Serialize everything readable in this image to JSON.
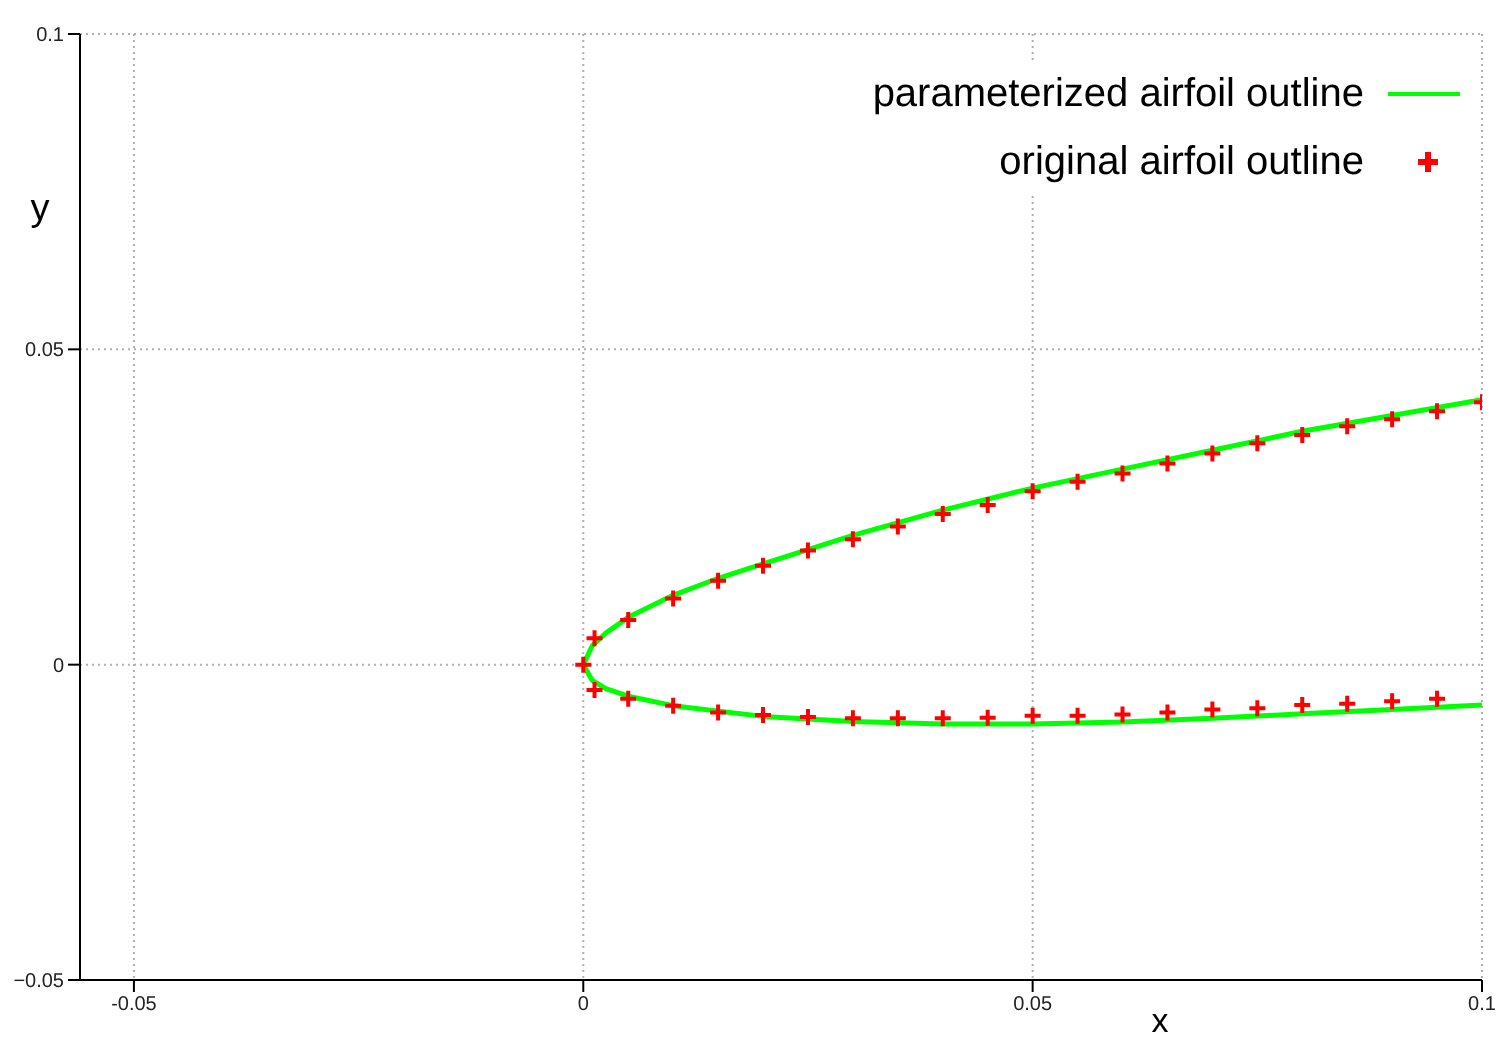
{
  "chart_data": {
    "type": "scatter",
    "xlabel": "x",
    "ylabel": "y",
    "xlim": [
      -0.056,
      0.1
    ],
    "ylim": [
      -0.05,
      0.1
    ],
    "xticks": [
      -0.05,
      0,
      0.05,
      0.1
    ],
    "yticks": [
      {
        "value": -0.05,
        "label": "−0.05"
      },
      0,
      0.05,
      0.1
    ],
    "grid": true,
    "legend": "top right",
    "series": [
      {
        "name": "parameterized airfoil outline",
        "type": "line",
        "color": "#00ff00",
        "marker": "none",
        "line_style": "solid",
        "x": [
          0.1,
          0.09,
          0.08,
          0.07,
          0.06,
          0.05,
          0.04,
          0.03,
          0.02,
          0.015,
          0.01,
          0.005,
          0.0025,
          0.001,
          0,
          0.001,
          0.0025,
          0.005,
          0.01,
          0.02,
          0.03,
          0.04,
          0.05,
          0.06,
          0.07,
          0.08,
          0.09,
          0.1
        ],
        "values": [
          0.042,
          0.0395,
          0.037,
          0.034,
          0.031,
          0.028,
          0.0245,
          0.0205,
          0.016,
          0.0137,
          0.011,
          0.0075,
          0.005,
          0.003,
          0,
          -0.0025,
          -0.0038,
          -0.005,
          -0.0065,
          -0.0082,
          -0.009,
          -0.0094,
          -0.0094,
          -0.0091,
          -0.0085,
          -0.0078,
          -0.0071,
          -0.0064
        ]
      },
      {
        "name": "original airfoil outline",
        "color": "#ff0000",
        "marker": "cross",
        "x": [
          0.1,
          0.095,
          0.09,
          0.085,
          0.08,
          0.075,
          0.07,
          0.065,
          0.06,
          0.055,
          0.05,
          0.045,
          0.04,
          0.035,
          0.03,
          0.025,
          0.02,
          0.015,
          0.01,
          0.005,
          0.00125,
          0,
          0.00125,
          0.005,
          0.01,
          0.015,
          0.02,
          0.025,
          0.03,
          0.035,
          0.04,
          0.045,
          0.05,
          0.055,
          0.06,
          0.065,
          0.07,
          0.075,
          0.08,
          0.085,
          0.09,
          0.095
        ],
        "values": [
          0.0416,
          0.0402,
          0.0389,
          0.0378,
          0.0364,
          0.0351,
          0.0335,
          0.0319,
          0.0303,
          0.029,
          0.0275,
          0.0253,
          0.0239,
          0.0219,
          0.0199,
          0.0181,
          0.0157,
          0.0133,
          0.0105,
          0.0071,
          0.0042,
          0,
          -0.004,
          -0.0054,
          -0.0065,
          -0.0076,
          -0.008,
          -0.0083,
          -0.0085,
          -0.0085,
          -0.0085,
          -0.0084,
          -0.0081,
          -0.0081,
          -0.0079,
          -0.0076,
          -0.0071,
          -0.0069,
          -0.0064,
          -0.0062,
          -0.0058,
          -0.0054
        ]
      }
    ]
  }
}
